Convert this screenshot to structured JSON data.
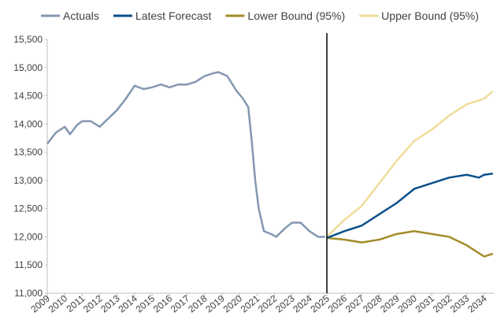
{
  "chart_data": {
    "type": "line",
    "series": [
      {
        "name": "Actuals",
        "color": "#8497b0",
        "x": [
          2009,
          2009.5,
          2010,
          2010.3,
          2010.7,
          2011,
          2011.5,
          2012,
          2012.5,
          2013,
          2013.5,
          2014,
          2014.5,
          2015,
          2015.5,
          2016,
          2016.5,
          2017,
          2017.5,
          2018,
          2018.5,
          2018.8,
          2019.3,
          2019.8,
          2020.2,
          2020.5,
          2020.7,
          2020.9,
          2021.1,
          2021.4,
          2021.8,
          2022.1,
          2022.6,
          2023,
          2023.5,
          2024,
          2024.5,
          2024.9
        ],
        "values": [
          13650,
          13850,
          13950,
          13820,
          13980,
          14050,
          14050,
          13950,
          14100,
          14250,
          14450,
          14680,
          14620,
          14650,
          14700,
          14650,
          14700,
          14700,
          14750,
          14850,
          14900,
          14920,
          14850,
          14600,
          14450,
          14300,
          13700,
          13000,
          12500,
          12100,
          12050,
          12000,
          12150,
          12250,
          12250,
          12100,
          12000,
          12000
        ]
      },
      {
        "name": "Latest Forecast",
        "color": "#0b4f8a",
        "x": [
          2025,
          2026,
          2027,
          2028,
          2029,
          2030,
          2031,
          2032,
          2033,
          2033.7,
          2034,
          2034.5
        ],
        "values": [
          11980,
          12100,
          12200,
          12400,
          12600,
          12850,
          12950,
          13050,
          13100,
          13050,
          13100,
          13120
        ]
      },
      {
        "name": "Lower Bound (95%)",
        "color": "#a48b2a",
        "x": [
          2025,
          2026,
          2027,
          2028,
          2029,
          2030,
          2031,
          2032,
          2033,
          2034,
          2034.5
        ],
        "values": [
          11980,
          11950,
          11900,
          11950,
          12050,
          12100,
          12050,
          12000,
          11850,
          11650,
          11700
        ]
      },
      {
        "name": "Upper Bound (95%)",
        "color": "#f0dc9a",
        "x": [
          2025,
          2026,
          2027,
          2028,
          2029,
          2030,
          2031,
          2032,
          2033,
          2034,
          2034.5
        ],
        "values": [
          12000,
          12300,
          12550,
          12950,
          13350,
          13700,
          13900,
          14150,
          14350,
          14450,
          14580
        ]
      }
    ],
    "vline": 2025,
    "xlim": [
      2009,
      2034.6
    ],
    "xticks": [
      2009,
      2010,
      2011,
      2012,
      2013,
      2014,
      2015,
      2016,
      2017,
      2018,
      2019,
      2020,
      2021,
      2022,
      2023,
      2024,
      2025,
      2026,
      2027,
      2028,
      2029,
      2030,
      2031,
      2032,
      2033,
      2034
    ],
    "ylim": [
      11000,
      15500
    ],
    "yticks": [
      {
        "value": 11000,
        "label": "11,000"
      },
      {
        "value": 11500,
        "label": "11,500"
      },
      {
        "value": 12000,
        "label": "12,000"
      },
      {
        "value": 12500,
        "label": "12,500"
      },
      {
        "value": 13000,
        "label": "13,000"
      },
      {
        "value": 13500,
        "label": "13,500"
      },
      {
        "value": 14000,
        "label": "14,000"
      },
      {
        "value": 14500,
        "label": "14,500"
      },
      {
        "value": 15000,
        "label": "15,000"
      },
      {
        "value": 15500,
        "label": "15,500"
      }
    ],
    "legend": "top"
  }
}
